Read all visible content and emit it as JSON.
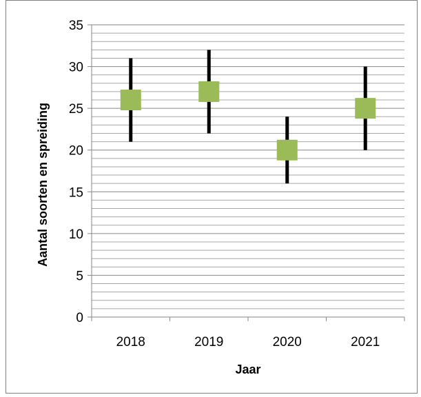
{
  "chart_data": {
    "type": "scatter",
    "title": "",
    "xlabel": "Jaar",
    "ylabel": "Aantal soorten en spreiding",
    "categories": [
      "2018",
      "2019",
      "2020",
      "2021"
    ],
    "series": [
      {
        "values": [
          26,
          27,
          20,
          25
        ],
        "low": [
          21,
          22,
          16,
          20
        ],
        "high": [
          31,
          32,
          24,
          30
        ]
      }
    ],
    "ylim": [
      0,
      35
    ],
    "yticks": [
      "0",
      "5",
      "10",
      "15",
      "20",
      "25",
      "30",
      "35"
    ],
    "grid": true,
    "legend": "none",
    "colors": {
      "marker": "#9bbb59",
      "errorbar": "#000000",
      "grid_major": "#868686",
      "grid_minor": "#a6a6a6",
      "axis": "#868686"
    }
  }
}
